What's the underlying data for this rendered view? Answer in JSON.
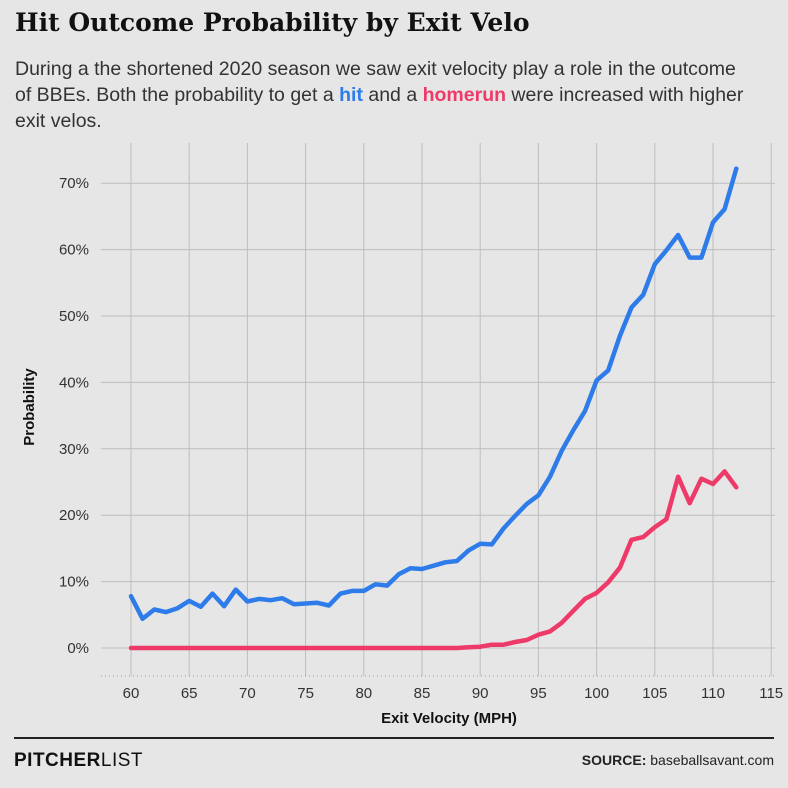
{
  "title": "Hit Outcome Probability by Exit Velo",
  "subtitle": {
    "part1": "During a the shortened 2020 season we saw exit velocity play a role in the outcome of BBEs. Both the probability to get a ",
    "hit_word": "hit",
    "part2": " and a ",
    "homerun_word": "homerun",
    "part3": " were increased with higher exit velos."
  },
  "colors": {
    "hit": "#2e7bea",
    "homerun": "#ee3a68",
    "grid": "#bdbdbd",
    "background": "#e6e6e6"
  },
  "footer": {
    "logo_bold": "PITCHER",
    "logo_light": "LIST",
    "source_label": "SOURCE:",
    "source_value": "baseballsavant.com"
  },
  "chart_data": {
    "type": "line",
    "title": "",
    "xlabel": "Exit Velocity (MPH)",
    "ylabel": "Probability",
    "xlim": [
      60,
      115
    ],
    "ylim": [
      0,
      75
    ],
    "xticks": [
      60,
      65,
      70,
      75,
      80,
      85,
      90,
      95,
      100,
      105,
      110,
      115
    ],
    "xtick_labels": [
      "60",
      "65",
      "70",
      "75",
      "80",
      "85",
      "90",
      "95",
      "100",
      "105",
      "110",
      "115"
    ],
    "yticks": [
      0,
      10,
      20,
      30,
      40,
      50,
      60,
      70
    ],
    "ytick_labels": [
      "0%",
      "10%",
      "20%",
      "30%",
      "40%",
      "50%",
      "60%",
      "70%"
    ],
    "grid": true,
    "x": [
      60,
      61,
      62,
      63,
      64,
      65,
      66,
      67,
      68,
      69,
      70,
      71,
      72,
      73,
      74,
      75,
      76,
      77,
      78,
      79,
      80,
      81,
      82,
      83,
      84,
      85,
      86,
      87,
      88,
      89,
      90,
      91,
      92,
      93,
      94,
      95,
      96,
      97,
      98,
      99,
      100,
      101,
      102,
      103,
      104,
      105,
      106,
      107,
      108,
      109,
      110,
      111,
      112
    ],
    "series": [
      {
        "name": "hit",
        "color": "#2e7bea",
        "values": [
          7.8,
          4.4,
          5.8,
          5.4,
          6.0,
          7.1,
          6.2,
          8.2,
          6.3,
          8.8,
          7.0,
          7.4,
          7.2,
          7.5,
          6.6,
          6.7,
          6.8,
          6.4,
          8.2,
          8.6,
          8.6,
          9.6,
          9.4,
          11.1,
          12.0,
          11.9,
          12.4,
          12.9,
          13.1,
          14.7,
          15.7,
          15.6,
          18.0,
          19.9,
          21.7,
          23.0,
          25.8,
          29.7,
          32.8,
          35.7,
          40.3,
          41.8,
          47.0,
          51.3,
          53.2,
          57.8,
          59.9,
          62.2,
          58.8,
          58.8,
          64.1,
          66.1,
          72.2
        ]
      },
      {
        "name": "homerun",
        "color": "#ee3a68",
        "values": [
          0,
          0,
          0,
          0,
          0,
          0,
          0,
          0,
          0,
          0,
          0,
          0,
          0,
          0,
          0,
          0,
          0,
          0,
          0,
          0,
          0,
          0,
          0,
          0,
          0,
          0,
          0,
          0,
          0,
          0.1,
          0.2,
          0.5,
          0.5,
          0.9,
          1.2,
          2.0,
          2.5,
          3.8,
          5.6,
          7.4,
          8.3,
          9.9,
          12.1,
          16.3,
          16.7,
          18.2,
          19.4,
          25.8,
          21.8,
          25.5,
          24.7,
          26.6,
          24.2
        ]
      }
    ]
  }
}
